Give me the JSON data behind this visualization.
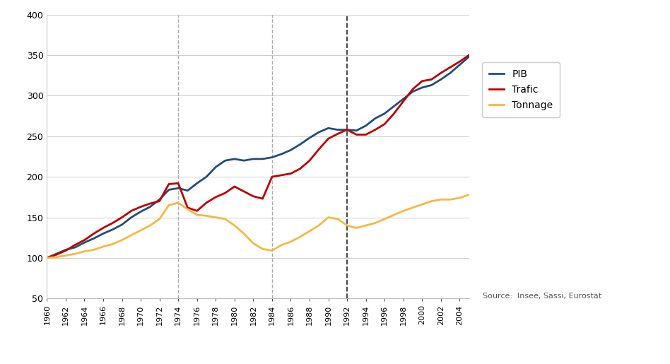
{
  "years": [
    1960,
    1961,
    1962,
    1963,
    1964,
    1965,
    1966,
    1967,
    1968,
    1969,
    1970,
    1971,
    1972,
    1973,
    1974,
    1975,
    1976,
    1977,
    1978,
    1979,
    1980,
    1981,
    1982,
    1983,
    1984,
    1985,
    1986,
    1987,
    1988,
    1989,
    1990,
    1991,
    1992,
    1993,
    1994,
    1995,
    1996,
    1997,
    1998,
    1999,
    2000,
    2001,
    2002,
    2003,
    2004,
    2005
  ],
  "PIB": [
    100,
    105,
    110,
    113,
    119,
    124,
    130,
    135,
    141,
    150,
    157,
    163,
    172,
    184,
    186,
    183,
    192,
    200,
    212,
    220,
    222,
    220,
    222,
    222,
    224,
    228,
    233,
    240,
    248,
    255,
    260,
    258,
    258,
    257,
    263,
    272,
    278,
    287,
    296,
    305,
    310,
    313,
    320,
    328,
    338,
    348
  ],
  "Trafic": [
    100,
    104,
    109,
    116,
    122,
    130,
    137,
    143,
    150,
    158,
    163,
    167,
    170,
    191,
    192,
    162,
    158,
    168,
    175,
    180,
    188,
    182,
    176,
    173,
    200,
    202,
    204,
    210,
    220,
    234,
    247,
    253,
    258,
    252,
    252,
    258,
    265,
    278,
    293,
    308,
    318,
    320,
    328,
    335,
    342,
    350
  ],
  "Tonnage": [
    100,
    101,
    103,
    105,
    108,
    110,
    114,
    117,
    122,
    128,
    134,
    140,
    148,
    165,
    168,
    160,
    153,
    152,
    150,
    148,
    140,
    130,
    118,
    111,
    109,
    116,
    120,
    126,
    133,
    140,
    150,
    148,
    140,
    137,
    140,
    143,
    148,
    153,
    158,
    162,
    166,
    170,
    172,
    172,
    174,
    178
  ],
  "PIB_color": "#1F4E79",
  "Trafic_color": "#C00000",
  "Tonnage_color": "#F4B942",
  "vlines": [
    1974,
    1984,
    1992
  ],
  "vline_colors": [
    "#AAAAAA",
    "#AAAAAA",
    "#333333"
  ],
  "ylim": [
    50,
    400
  ],
  "yticks": [
    50,
    100,
    150,
    200,
    250,
    300,
    350,
    400
  ],
  "source_text": "Source:  Insee, Sassi, Eurostat",
  "background_color": "#FFFFFF",
  "grid_color": "#CCCCCC"
}
